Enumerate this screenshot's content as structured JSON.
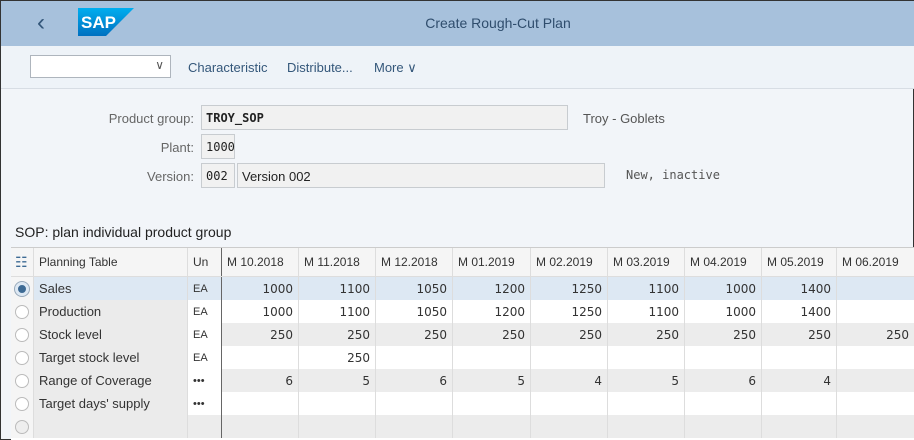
{
  "header": {
    "title": "Create Rough-Cut Plan",
    "logo": "SAP",
    "back_icon": "chevron-left-icon"
  },
  "toolbar": {
    "dropdown_value": "",
    "characteristic": "Characteristic",
    "distribute": "Distribute...",
    "more": "More"
  },
  "form": {
    "product_group_label": "Product group:",
    "product_group": "TROY_SOP",
    "product_group_desc": "Troy - Goblets",
    "plant_label": "Plant:",
    "plant": "1000",
    "version_label": "Version:",
    "version": "002",
    "version_desc": "Version 002",
    "version_status": "New, inactive"
  },
  "section_title": "SOP: plan individual product group",
  "table": {
    "header_label": "Planning Table",
    "header_unit": "Un",
    "columns": [
      "M 10.2018",
      "M 11.2018",
      "M 12.2018",
      "M 01.2019",
      "M 02.2019",
      "M 03.2019",
      "M 04.2019",
      "M 05.2019",
      "M 06.2019"
    ],
    "rows": [
      {
        "label": "Sales",
        "unit": "EA",
        "selected": true,
        "values": [
          "1000",
          "1100",
          "1050",
          "1200",
          "1250",
          "1100",
          "1000",
          "1400",
          ""
        ]
      },
      {
        "label": "Production",
        "unit": "EA",
        "selected": false,
        "values": [
          "1000",
          "1100",
          "1050",
          "1200",
          "1250",
          "1100",
          "1000",
          "1400",
          ""
        ]
      },
      {
        "label": "Stock level",
        "unit": "EA",
        "selected": false,
        "values": [
          "250",
          "250",
          "250",
          "250",
          "250",
          "250",
          "250",
          "250",
          "250"
        ]
      },
      {
        "label": "Target stock level",
        "unit": "EA",
        "selected": false,
        "values": [
          "",
          "250",
          "",
          "",
          "",
          "",
          "",
          "",
          ""
        ]
      },
      {
        "label": "Range of Coverage",
        "unit": "•••",
        "selected": false,
        "values": [
          "6",
          "5",
          "6",
          "5",
          "4",
          "5",
          "6",
          "4",
          ""
        ]
      },
      {
        "label": "Target days' supply",
        "unit": "•••",
        "selected": false,
        "values": [
          "",
          "",
          "",
          "",
          "",
          "",
          "",
          "",
          ""
        ]
      },
      {
        "label": "",
        "unit": "",
        "selected": false,
        "values": [
          "",
          "",
          "",
          "",
          "",
          "",
          "",
          "",
          ""
        ]
      }
    ]
  },
  "colors": {
    "header_bg": "#a7c1dc",
    "selected_row": "#dde8f3",
    "link": "#34577a"
  }
}
